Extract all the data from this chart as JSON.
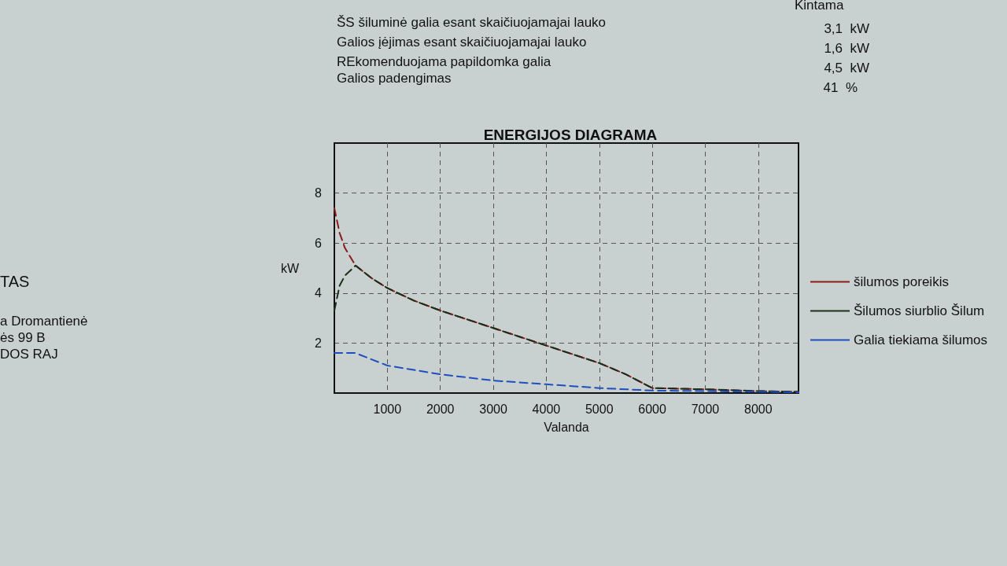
{
  "chart_data": {
    "type": "line",
    "title": "ENERGIJOS DIAGRAMA",
    "xlabel": "Valanda",
    "ylabel": "kW",
    "annotations": [
      "Kintama",
      "ŠS šiluminė galia esant skaičiuojamajai lauko",
      "3,1  kW",
      "Galios įėjimas esant skaičiuojamajai lauko",
      "1,6  kW",
      "REkomenduojama papildomka galia",
      "4,5  kW",
      "Galios padengimas",
      "41  %",
      "TAS",
      "a Dromantienė",
      "ės 99 B",
      "DOS RAJ"
    ],
    "xlim": [
      0,
      8760
    ],
    "xticks": [
      1000,
      2000,
      3000,
      4000,
      5000,
      6000,
      7000,
      8000
    ],
    "ylim": [
      0,
      10
    ],
    "yticks": [
      2,
      4,
      6,
      8
    ],
    "grid": true,
    "legend": "right",
    "line_style": "dashed",
    "marker": "none",
    "series": [
      {
        "name": "šilumos poreikis",
        "color": "#8b1a1a",
        "x": [
          0,
          100,
          200,
          400,
          700,
          1000,
          1500,
          2000,
          2500,
          3000,
          3500,
          4000,
          4500,
          5000,
          5500,
          6000,
          7000,
          8000,
          8760
        ],
        "values": [
          7.4,
          6.4,
          5.8,
          5.1,
          4.6,
          4.2,
          3.7,
          3.3,
          2.95,
          2.6,
          2.25,
          1.9,
          1.55,
          1.2,
          0.75,
          0.2,
          0.15,
          0.08,
          0.05
        ]
      },
      {
        "name": "Šilumos siurblio Šilum",
        "color": "#1a2e1a",
        "x": [
          0,
          100,
          200,
          400,
          700,
          1000,
          1500,
          2000,
          2500,
          3000,
          3500,
          4000,
          4500,
          5000,
          5500,
          6000,
          7000,
          8000,
          8760
        ],
        "values": [
          3.3,
          4.3,
          4.7,
          5.1,
          4.6,
          4.2,
          3.7,
          3.3,
          2.95,
          2.6,
          2.25,
          1.9,
          1.55,
          1.2,
          0.75,
          0.2,
          0.15,
          0.08,
          0.05
        ]
      },
      {
        "name": "Galia tiekiama šilumos",
        "color": "#1f4fbf",
        "x": [
          0,
          400,
          1000,
          2000,
          3000,
          4000,
          5000,
          6000,
          7000,
          8000,
          8760
        ],
        "values": [
          1.6,
          1.6,
          1.1,
          0.75,
          0.5,
          0.35,
          0.2,
          0.1,
          0.08,
          0.05,
          0.03
        ]
      }
    ]
  }
}
